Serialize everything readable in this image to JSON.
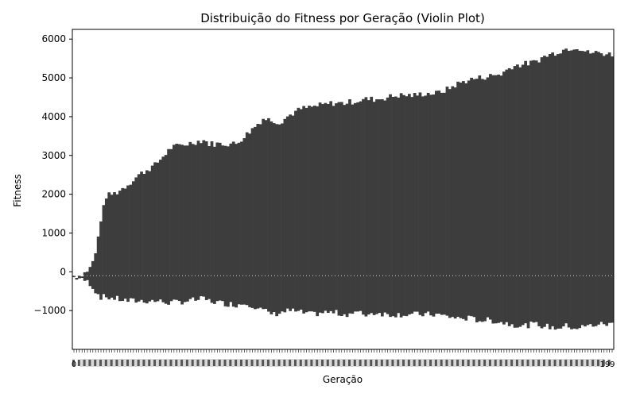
{
  "chart_data": {
    "type": "violin",
    "title": "Distribuição do Fitness por Geração (Violin Plot)",
    "xlabel": "Geração",
    "ylabel": "Fitness",
    "ylim": [
      -2000,
      6250
    ],
    "yticks": [
      -1000,
      0,
      1000,
      2000,
      3000,
      4000,
      5000,
      6000
    ],
    "ytick_labels": [
      "−1000",
      "0",
      "1000",
      "2000",
      "3000",
      "4000",
      "5000",
      "6000"
    ],
    "x_first_tick_label": "0",
    "x_last_tick_label": "199",
    "generations_count": 200,
    "color": "#3d3d3d",
    "grid": false,
    "legend": "none",
    "series": [
      {
        "gen_start": [
          0,
          3,
          6,
          8,
          10,
          12,
          16,
          20,
          24,
          30,
          36,
          42,
          48,
          50,
          54,
          60,
          64,
          70,
          74,
          76,
          80,
          84,
          88,
          92,
          96,
          100,
          104,
          108,
          112,
          116,
          120,
          126,
          130,
          134,
          138,
          142,
          146,
          150,
          154,
          158,
          162,
          166,
          170,
          174,
          178,
          182,
          186,
          190,
          194,
          199
        ],
        "max_fitness": [
          -100,
          -90,
          100,
          450,
          1350,
          1950,
          2050,
          2250,
          2500,
          2750,
          3200,
          3300,
          3400,
          3300,
          3300,
          3300,
          3550,
          3950,
          3900,
          3850,
          4050,
          4200,
          4250,
          4300,
          4350,
          4350,
          4400,
          4450,
          4450,
          4500,
          4550,
          4550,
          4600,
          4600,
          4700,
          4850,
          4950,
          5000,
          5050,
          5100,
          5300,
          5350,
          5400,
          5550,
          5650,
          5750,
          5800,
          5650,
          5650,
          5600
        ],
        "min_fitness": [
          -150,
          -180,
          -300,
          -500,
          -650,
          -650,
          -700,
          -750,
          -750,
          -750,
          -800,
          -750,
          -700,
          -750,
          -800,
          -850,
          -800,
          -1000,
          -1100,
          -1050,
          -1000,
          -1050,
          -1100,
          -1050,
          -1050,
          -1100,
          -1050,
          -1100,
          -1050,
          -1100,
          -1100,
          -1100,
          -1100,
          -1100,
          -1150,
          -1200,
          -1200,
          -1250,
          -1250,
          -1300,
          -1350,
          -1400,
          -1350,
          -1400,
          -1450,
          -1400,
          -1450,
          -1400,
          -1350,
          -1350
        ],
        "median_fitness": -100
      }
    ]
  }
}
